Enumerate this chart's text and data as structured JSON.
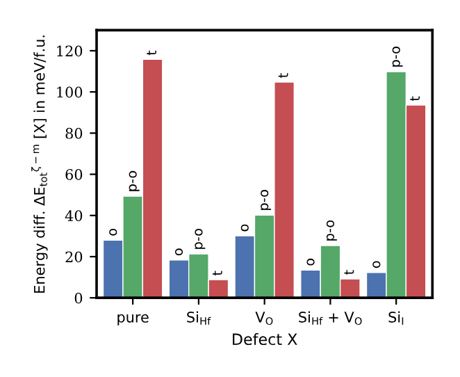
{
  "chart_data": {
    "type": "bar",
    "xlabel": "Defect X",
    "ylabel": "Energy diff. ΔE$_{tot}$$^{ζ−m}$ [X] in meV/f.u.",
    "categories": [
      "pure",
      "Si$_{Hf}$",
      "V$_{O}$",
      "Si$_{Hf}$ + V$_{O}$",
      "Si$_{I}$"
    ],
    "series": [
      {
        "color": "#4c72b0",
        "values": [
          28,
          18.4,
          30.1,
          13.5,
          12.3
        ],
        "value_labels": [
          "o",
          "o",
          "o",
          "o",
          "o"
        ]
      },
      {
        "color": "#55a868",
        "values": [
          49.4,
          21.3,
          40.2,
          25.4,
          109.8
        ],
        "value_labels": [
          "p-o",
          "p-o",
          "p-o",
          "p-o",
          "p-o"
        ]
      },
      {
        "color": "#c44e52",
        "values": [
          115.8,
          8.8,
          104.8,
          9.2,
          93.6
        ],
        "value_labels": [
          "t",
          "t",
          "t",
          "t",
          "t"
        ]
      }
    ],
    "ylim": [
      0,
      130
    ],
    "yticks": [
      0,
      20,
      40,
      60,
      80,
      100,
      120
    ],
    "grid": false,
    "legend": false
  }
}
